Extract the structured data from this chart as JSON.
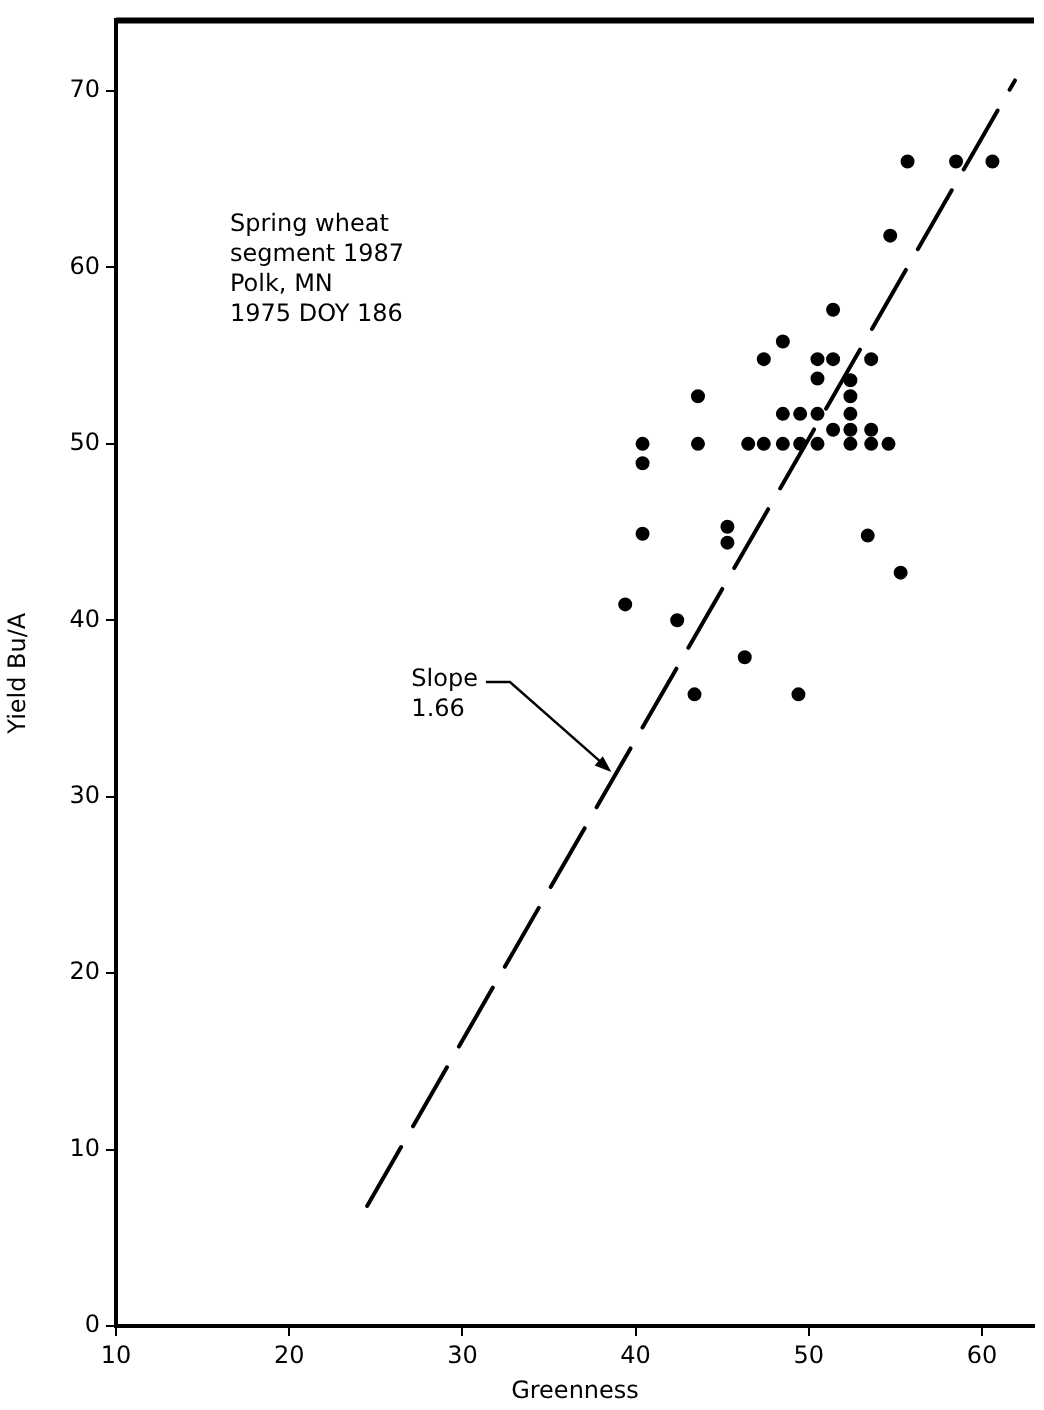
{
  "chart_data": {
    "type": "scatter",
    "xlabel": "Greenness",
    "ylabel": "Yield Bu/A",
    "xlim": [
      10,
      63
    ],
    "xticks": [
      10,
      20,
      30,
      40,
      50,
      60
    ],
    "ylim": [
      0,
      74
    ],
    "yticks": [
      0,
      10,
      20,
      30,
      40,
      50,
      60,
      70
    ],
    "grid": false,
    "legend": false,
    "marker": "circle",
    "series": [
      {
        "type": "scatter",
        "color": "#000000",
        "x": [
          55.7,
          58.5,
          60.6,
          54.7,
          51.4,
          48.5,
          47.4,
          50.5,
          51.4,
          53.6,
          50.5,
          52.4,
          43.6,
          52.4,
          48.5,
          49.5,
          50.5,
          52.4,
          51.4,
          52.4,
          53.6,
          40.4,
          43.6,
          46.5,
          47.4,
          48.5,
          49.5,
          50.5,
          52.4,
          53.6,
          54.6,
          40.4,
          40.4,
          45.3,
          45.3,
          53.4,
          55.3,
          39.4,
          42.4,
          46.3,
          43.4,
          49.4
        ],
        "values": [
          66,
          66,
          66,
          61.8,
          57.6,
          55.8,
          54.8,
          54.8,
          54.8,
          54.8,
          53.7,
          53.6,
          52.7,
          52.7,
          51.7,
          51.7,
          51.7,
          51.7,
          50.8,
          50.8,
          50.8,
          50,
          50,
          50,
          50,
          50,
          50,
          50,
          50,
          50,
          50,
          48.9,
          44.9,
          45.3,
          44.4,
          44.8,
          42.7,
          40.9,
          40,
          37.9,
          35.8,
          35.8
        ]
      },
      {
        "type": "line",
        "color": "#000000",
        "marker": "none",
        "line_style": "dashed",
        "x": [
          24.5,
          61.9
        ],
        "values": [
          6.8,
          70.6
        ]
      }
    ],
    "annotations": [
      "Spring wheat\nsegment 1987\nPolk, MN\n1975 DOY 186",
      {
        "text": "Slope\n1.66",
        "x": 38.6,
        "y": 31.4
      }
    ]
  }
}
